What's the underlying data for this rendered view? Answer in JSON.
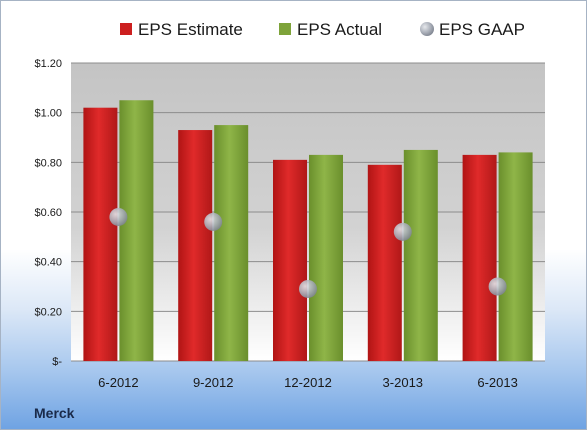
{
  "chart_data": {
    "type": "bar",
    "company": "Merck",
    "categories": [
      "6-2012",
      "9-2012",
      "12-2012",
      "3-2013",
      "6-2013"
    ],
    "series": [
      {
        "name": "EPS Estimate",
        "kind": "bar",
        "color": "#cc1f1f",
        "values": [
          1.02,
          0.93,
          0.81,
          0.79,
          0.83
        ]
      },
      {
        "name": "EPS Actual",
        "kind": "bar",
        "color": "#7ea33a",
        "values": [
          1.05,
          0.95,
          0.83,
          0.85,
          0.84
        ]
      },
      {
        "name": "EPS GAAP",
        "kind": "scatter",
        "color": "#b7bcc6",
        "values": [
          0.58,
          0.56,
          0.29,
          0.52,
          0.3
        ]
      }
    ],
    "yticks": [
      "$-",
      "$0.20",
      "$0.40",
      "$0.60",
      "$0.80",
      "$1.00",
      "$1.20"
    ],
    "ylim": [
      0,
      1.2
    ],
    "legend_position": "top",
    "grid": true
  }
}
